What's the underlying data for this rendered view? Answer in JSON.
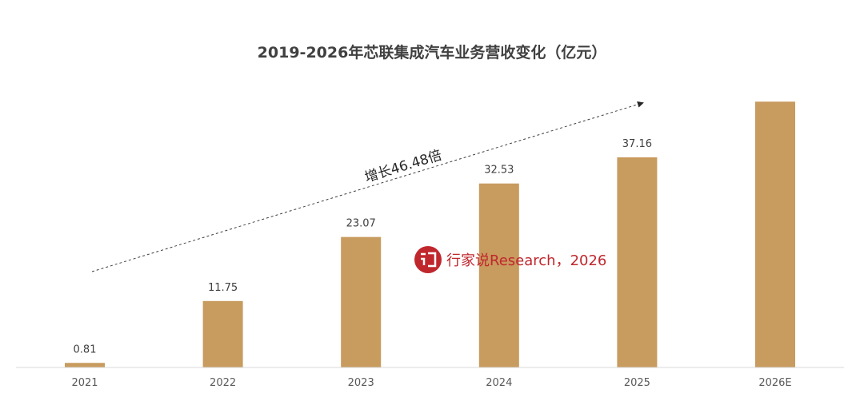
{
  "chart_data": {
    "type": "bar",
    "title": "2019-2026年芯联集成汽车业务营收变化（亿元）",
    "categories": [
      "2021",
      "2022",
      "2023",
      "2024",
      "2025",
      "2026E"
    ],
    "values": [
      0.81,
      11.75,
      23.07,
      32.53,
      37.16,
      47.0
    ],
    "data_labels": [
      "0.81",
      "11.75",
      "23.07",
      "32.53",
      "37.16",
      ""
    ],
    "xlabel": "",
    "ylabel": "",
    "ylim": [
      0,
      50
    ],
    "grid": false,
    "annotation": "增长46.48倍",
    "colors": {
      "bar": "#c89b5e",
      "axis": "#d9d9d9"
    }
  },
  "watermark": "行家说Research，2026"
}
